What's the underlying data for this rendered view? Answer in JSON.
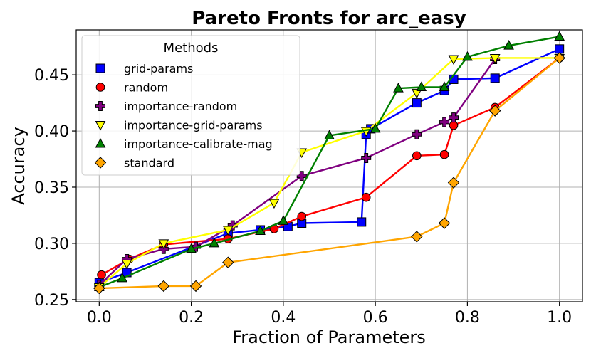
{
  "chart_data": {
    "type": "line",
    "title": "Pareto Fronts for arc_easy",
    "xlabel": "Fraction of Parameters",
    "ylabel": "Accuracy",
    "xlim": [
      -0.05,
      1.05
    ],
    "ylim": [
      0.248,
      0.49
    ],
    "x_ticks": [
      0.0,
      0.2,
      0.4,
      0.6,
      0.8,
      1.0
    ],
    "x_tick_labels": [
      "0.0",
      "0.2",
      "0.4",
      "0.6",
      "0.8",
      "1.0"
    ],
    "y_ticks": [
      0.25,
      0.3,
      0.35,
      0.4,
      0.45
    ],
    "y_tick_labels": [
      "0.25",
      "0.30",
      "0.35",
      "0.40",
      "0.45"
    ],
    "grid": true,
    "legend": {
      "title": "Methods",
      "position": "upper-left"
    },
    "series": [
      {
        "name": "grid-params",
        "color": "#0000ff",
        "marker": "square",
        "x": [
          0.0,
          0.06,
          0.28,
          0.35,
          0.41,
          0.44,
          0.57,
          0.58,
          0.59,
          0.69,
          0.75,
          0.77,
          0.86,
          1.0
        ],
        "y": [
          0.265,
          0.274,
          0.309,
          0.312,
          0.315,
          0.318,
          0.319,
          0.397,
          0.402,
          0.425,
          0.436,
          0.446,
          0.447,
          0.473
        ]
      },
      {
        "name": "random",
        "color": "#ff0000",
        "marker": "circle",
        "x": [
          0.005,
          0.065,
          0.14,
          0.28,
          0.38,
          0.44,
          0.58,
          0.69,
          0.75,
          0.77,
          0.86,
          1.0
        ],
        "y": [
          0.272,
          0.286,
          0.299,
          0.304,
          0.313,
          0.324,
          0.341,
          0.378,
          0.379,
          0.405,
          0.421,
          0.465
        ]
      },
      {
        "name": "importance-random",
        "color": "#800080",
        "marker": "plus",
        "x": [
          0.0,
          0.06,
          0.14,
          0.21,
          0.29,
          0.44,
          0.58,
          0.69,
          0.75,
          0.77,
          0.86
        ],
        "y": [
          0.263,
          0.286,
          0.295,
          0.297,
          0.316,
          0.36,
          0.376,
          0.397,
          0.408,
          0.412,
          0.464
        ]
      },
      {
        "name": "importance-grid-params",
        "color": "#ffff00",
        "marker": "triangle-down",
        "x": [
          0.0,
          0.06,
          0.14,
          0.28,
          0.38,
          0.44,
          0.58,
          0.69,
          0.77,
          0.86,
          1.0
        ],
        "y": [
          0.261,
          0.282,
          0.3,
          0.312,
          0.336,
          0.381,
          0.4,
          0.434,
          0.464,
          0.465,
          0.465
        ]
      },
      {
        "name": "importance-calibrate-mag",
        "color": "#008000",
        "marker": "triangle-up",
        "x": [
          0.0,
          0.05,
          0.2,
          0.25,
          0.35,
          0.4,
          0.5,
          0.6,
          0.65,
          0.7,
          0.75,
          0.8,
          0.89,
          1.0
        ],
        "y": [
          0.261,
          0.269,
          0.295,
          0.3,
          0.311,
          0.32,
          0.396,
          0.402,
          0.438,
          0.439,
          0.439,
          0.466,
          0.476,
          0.484
        ]
      },
      {
        "name": "standard",
        "color": "#ffa500",
        "marker": "diamond",
        "x": [
          0.0,
          0.14,
          0.21,
          0.28,
          0.69,
          0.75,
          0.77,
          0.86,
          1.0
        ],
        "y": [
          0.26,
          0.262,
          0.262,
          0.283,
          0.306,
          0.318,
          0.354,
          0.418,
          0.465
        ]
      }
    ]
  }
}
